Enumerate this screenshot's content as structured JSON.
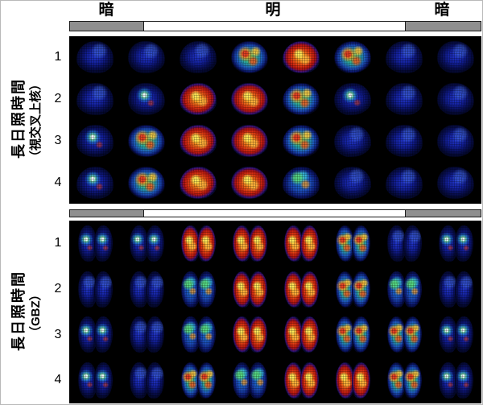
{
  "figure": {
    "light_bar": {
      "dark_left_label": "暗",
      "light_label": "明",
      "dark_right_label": "暗",
      "fractions": [
        0.18,
        0.635,
        0.185
      ],
      "dark_color": "#8f8f8f",
      "light_color": "#ffffff"
    },
    "panels": [
      {
        "id": "scn",
        "axis_label": "長日照時間",
        "axis_sublabel": "（視交叉上核）",
        "shape": "round",
        "rows": [
          {
            "label": "1",
            "cells": [
              0,
              0,
              0,
              3,
              4,
              3,
              0,
              0
            ]
          },
          {
            "label": "2",
            "cells": [
              0,
              1,
              4,
              4,
              3,
              1,
              0,
              0
            ]
          },
          {
            "label": "3",
            "cells": [
              1,
              3,
              4,
              4,
              3,
              0,
              0,
              0
            ]
          },
          {
            "label": "4",
            "cells": [
              1,
              3,
              4,
              4,
              2,
              0,
              0,
              0
            ]
          }
        ]
      },
      {
        "id": "gbz",
        "axis_label": "長日照時間",
        "axis_sublabel": "（GBZ）",
        "shape": "bilobed",
        "rows": [
          {
            "label": "1",
            "cells": [
              1,
              1,
              4,
              4,
              4,
              3,
              0,
              1
            ]
          },
          {
            "label": "2",
            "cells": [
              0,
              0,
              2,
              4,
              4,
              3,
              2,
              0
            ]
          },
          {
            "label": "3",
            "cells": [
              1,
              0,
              2,
              4,
              4,
              3,
              3,
              1
            ]
          },
          {
            "label": "4",
            "cells": [
              1,
              0,
              3,
              2,
              4,
              4,
              3,
              1
            ]
          }
        ]
      }
    ],
    "activity_levels_legend": "0=low(blue) 1=low+spot 2=mid(blue-green) 3=mixed(green/red) 4=high(red)"
  },
  "colors": {
    "panel_background": "#000000",
    "dark_segment": "#8f8f8f",
    "light_segment": "#ffffff",
    "low_activity_blue": "#13209a",
    "mid_activity_green": "#5ec84e",
    "high_activity_red": "#dd3512",
    "peak_activity_yellow": "#f4d235"
  }
}
